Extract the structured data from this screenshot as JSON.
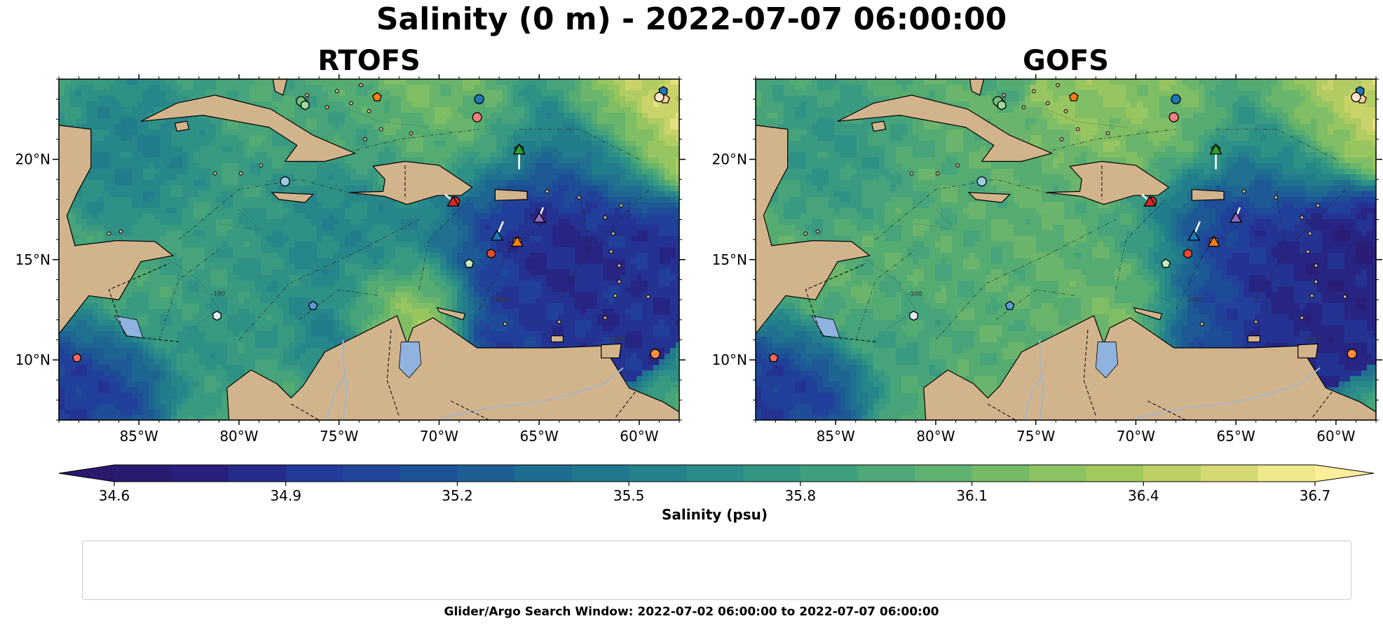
{
  "figure": {
    "title": "Salinity (0 m) - 2022-07-07 06:00:00",
    "footer": "Glider/Argo Search Window: 2022-07-02 06:00:00 to 2022-07-07 06:00:00"
  },
  "colors": {
    "land": "#d2b48c",
    "lakes": "#8fb3de",
    "rivers": "#a7b5c6",
    "cmap_haline": [
      "#2a186c",
      "#28217f",
      "#223a9a",
      "#1d4f97",
      "#1e6692",
      "#217a8d",
      "#2a8b88",
      "#3b9c80",
      "#55ac73",
      "#79bc65",
      "#a3c95e",
      "#cfd56c",
      "#fdef9a"
    ]
  },
  "chart_data": [
    {
      "type": "heatmap",
      "title": "RTOFS",
      "xticks": [
        "85°W",
        "80°W",
        "75°W",
        "70°W",
        "65°W",
        "60°W"
      ],
      "xtick_values": [
        -85,
        -80,
        -75,
        -70,
        -65,
        -60
      ],
      "yticks": [
        "10°N",
        "15°N",
        "20°N"
      ],
      "ytick_values": [
        10,
        15,
        20
      ],
      "xlim": [
        -89,
        -58
      ],
      "ylim": [
        7,
        24
      ],
      "grid": false,
      "field_summary": "low salinity (~34.6-35.0) in eastern Caribbean east of 69°W and in the Pacific; high salinity (~36.4-36.7) along the Venezuelan coast near 70°W and in the far north-east"
    },
    {
      "type": "heatmap",
      "title": "GOFS",
      "xticks": [
        "85°W",
        "80°W",
        "75°W",
        "70°W",
        "65°W",
        "60°W"
      ],
      "xtick_values": [
        -85,
        -80,
        -75,
        -70,
        -65,
        -60
      ],
      "yticks": [
        "10°N",
        "15°N",
        "20°N"
      ],
      "ytick_values": [
        10,
        15,
        20
      ],
      "xlim": [
        -89,
        -58
      ],
      "ylim": [
        7,
        24
      ],
      "grid": false,
      "field_summary": "low salinity (~34.6-35.0) in eastern Caribbean east of 69°W and in the Pacific; broad 36.0-36.4 water in the central Caribbean"
    }
  ],
  "colorbar": {
    "label": "Salinity (psu)",
    "ticks": [
      "34.6",
      "34.9",
      "35.2",
      "35.5",
      "35.8",
      "36.1",
      "36.4",
      "36.7"
    ],
    "tick_values": [
      34.6,
      34.9,
      35.2,
      35.5,
      35.8,
      36.1,
      36.4,
      36.7
    ],
    "vmin": 34.6,
    "vmax": 36.7,
    "step": 0.1,
    "extend": "both"
  },
  "contour_labels": [
    "-100",
    "-1000",
    "-2000"
  ],
  "markers": [
    {
      "id": "1902314",
      "lon": -68.0,
      "lat": 23.0,
      "shape": "circle",
      "color": "#1f77b4"
    },
    {
      "id": "1902316",
      "lon": -58.8,
      "lat": 23.4,
      "shape": "hexagon",
      "color": "#1f77b4"
    },
    {
      "id": "3901859",
      "lon": -76.3,
      "lat": 12.7,
      "shape": "pentagon",
      "color": "#5b9bd5"
    },
    {
      "id": "4901719",
      "lon": -77.7,
      "lat": 18.9,
      "shape": "circle",
      "color": "#9ecae1"
    },
    {
      "id": "4901720",
      "lon": -81.1,
      "lat": 12.2,
      "shape": "hexagon",
      "color": "#deebf7"
    },
    {
      "id": "4902113",
      "lon": -73.1,
      "lat": 23.1,
      "shape": "pentagon",
      "color": "#ff7f0e"
    },
    {
      "id": "4903227",
      "lon": -59.2,
      "lat": 10.3,
      "shape": "circle",
      "color": "#fd8d3c"
    },
    {
      "id": "4903237",
      "lon": -66.1,
      "lat": 15.9,
      "shape": "hexagon",
      "color": "#fdae6b"
    },
    {
      "id": "4903238",
      "lon": -58.7,
      "lat": 23.0,
      "shape": "pentagon",
      "color": "#fdd0a2"
    },
    {
      "id": "4903244",
      "lon": -59.0,
      "lat": 23.1,
      "shape": "circle",
      "color": "#fee6ce"
    },
    {
      "id": "4903255",
      "lon": -76.8,
      "lat": 22.8,
      "shape": "hexagon",
      "color": "#2ca02c"
    },
    {
      "id": "4903277",
      "lon": -66.0,
      "lat": 20.5,
      "shape": "pentagon",
      "color": "#31a354"
    },
    {
      "id": "4903279",
      "lon": -76.9,
      "lat": 22.9,
      "shape": "circle",
      "color": "#74c476"
    },
    {
      "id": "4903333",
      "lon": -76.7,
      "lat": 22.7,
      "shape": "hexagon",
      "color": "#a1d99b"
    },
    {
      "id": "4903344",
      "lon": -68.5,
      "lat": 14.8,
      "shape": "pentagon",
      "color": "#c7e9c0"
    },
    {
      "id": "4903353",
      "lon": -69.2,
      "lat": 17.9,
      "shape": "circle",
      "color": "#d62728"
    },
    {
      "id": "5906437",
      "lon": -67.4,
      "lat": 15.3,
      "shape": "hexagon",
      "color": "#e34a33"
    },
    {
      "id": "5906478",
      "lon": -88.1,
      "lat": 10.1,
      "shape": "pentagon",
      "color": "#f7675e"
    },
    {
      "id": "6901182",
      "lon": -68.1,
      "lat": 22.1,
      "shape": "circle",
      "color": "#f08080"
    },
    {
      "id": "SG610-20220621T1130",
      "lon": -67.1,
      "lat": 16.2,
      "shape": "triangle",
      "color": "#1f77b4",
      "glider": true
    },
    {
      "id": "SG635-20220622T1250",
      "lon": -66.1,
      "lat": 15.9,
      "shape": "triangle",
      "color": "#ff7f0e",
      "glider": true
    },
    {
      "id": "SG665-20220623T1144",
      "lon": -66.0,
      "lat": 20.5,
      "shape": "triangle",
      "color": "#2ca02c",
      "glider": true
    },
    {
      "id": "SG667-20220629T1254",
      "lon": -69.3,
      "lat": 17.9,
      "shape": "triangle",
      "color": "#d62728",
      "glider": true
    },
    {
      "id": "SG678-20220622T1240",
      "lon": -65.0,
      "lat": 17.1,
      "shape": "triangle",
      "color": "#9467bd",
      "glider": true
    }
  ],
  "legend_order": [
    [
      "1902314",
      "1902316",
      "3901859"
    ],
    [
      "4901719",
      "4901720",
      "4902113"
    ],
    [
      "4903227",
      "4903237",
      "4903238"
    ],
    [
      "4903244",
      "4903255",
      "4903277"
    ],
    [
      "4903279",
      "4903333",
      "4903344"
    ],
    [
      "4903353",
      "5906437",
      "5906478"
    ],
    [
      "6901182",
      "SG610-20220621T1130"
    ],
    [
      "SG635-20220622T1250",
      "SG665-20220623T1144"
    ],
    [
      "SG667-20220629T1254",
      "SG678-20220622T1240"
    ]
  ]
}
